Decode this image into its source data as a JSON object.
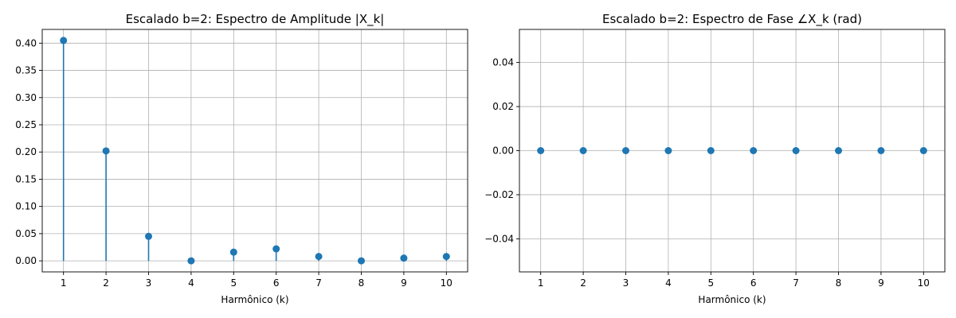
{
  "chart_data": [
    {
      "type": "stem",
      "title": "Escalado b=2: Espectro de Amplitude |X_k|",
      "xlabel": "Harmônico (k)",
      "ylabel": "",
      "x": [
        1,
        2,
        3,
        4,
        5,
        6,
        7,
        8,
        9,
        10
      ],
      "values": [
        0.405,
        0.202,
        0.045,
        0.0,
        0.016,
        0.022,
        0.008,
        0.0,
        0.005,
        0.008
      ],
      "xlim": [
        0.5,
        10.5
      ],
      "ylim": [
        -0.0203,
        0.4253
      ],
      "xticks": [
        "1",
        "2",
        "3",
        "4",
        "5",
        "6",
        "7",
        "8",
        "9",
        "10"
      ],
      "yticks": [
        "0.00",
        "0.05",
        "0.10",
        "0.15",
        "0.20",
        "0.25",
        "0.30",
        "0.35",
        "0.40"
      ],
      "grid": true,
      "color": "#1f77b4"
    },
    {
      "type": "scatter",
      "title": "Escalado b=2: Espectro de Fase ∠X_k (rad)",
      "xlabel": "Harmônico (k)",
      "ylabel": "",
      "x": [
        1,
        2,
        3,
        4,
        5,
        6,
        7,
        8,
        9,
        10
      ],
      "values": [
        0,
        0,
        0,
        0,
        0,
        0,
        0,
        0,
        0,
        0
      ],
      "xlim": [
        0.5,
        10.5
      ],
      "ylim": [
        -0.055,
        0.055
      ],
      "xticks": [
        "1",
        "2",
        "3",
        "4",
        "5",
        "6",
        "7",
        "8",
        "9",
        "10"
      ],
      "yticks": [
        "−0.04",
        "−0.02",
        "0.00",
        "0.02",
        "0.04"
      ],
      "grid": true,
      "color": "#1f77b4"
    }
  ]
}
